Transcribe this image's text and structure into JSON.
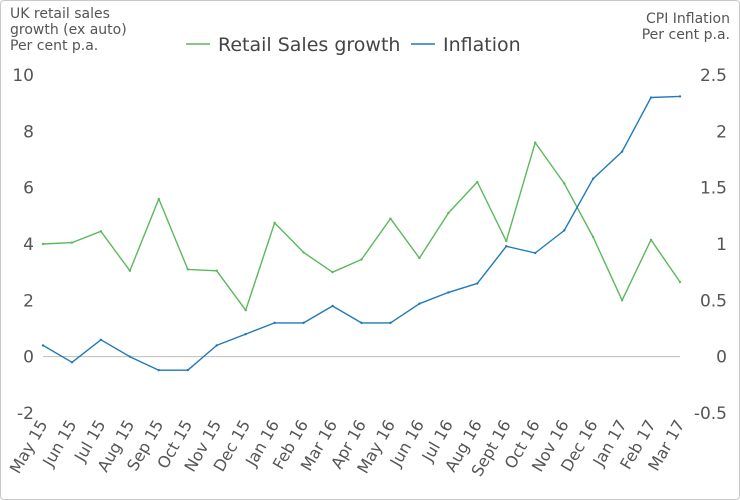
{
  "chart_data": {
    "type": "line",
    "left_axis_title": [
      "UK retail sales",
      "growth (ex auto)",
      "Per cent p.a."
    ],
    "right_axis_title": [
      "CPI Inflation",
      "Per cent p.a."
    ],
    "categories": [
      "May 15",
      "Jun 15",
      "Jul 15",
      "Aug 15",
      "Sep 15",
      "Oct 15",
      "Nov 15",
      "Dec 15",
      "Jan 16",
      "Feb 16",
      "Mar 16",
      "Apr 16",
      "May 16",
      "Jun 16",
      "Jul 16",
      "Aug 16",
      "Sept 16",
      "Oct 16",
      "Nov 16",
      "Dec 16",
      "Jan 17",
      "Feb 17",
      "Mar 17"
    ],
    "y_left": {
      "range": [
        -2,
        10
      ],
      "ticks": [
        "-2",
        "0",
        "2",
        "4",
        "6",
        "8",
        "10"
      ]
    },
    "y_right": {
      "range": [
        -0.5,
        2.5
      ],
      "ticks": [
        "-0.5",
        "0",
        "0.5",
        "1",
        "1.5",
        "2",
        "2.5"
      ]
    },
    "series": [
      {
        "name": "Retail Sales growth",
        "axis": "left",
        "color": "#5cb85c",
        "values": [
          4.0,
          4.05,
          4.45,
          3.05,
          5.6,
          3.1,
          3.05,
          1.65,
          4.75,
          3.7,
          3.0,
          3.45,
          4.9,
          3.5,
          5.1,
          6.2,
          4.1,
          7.6,
          6.15,
          4.25,
          2.0,
          4.15,
          2.65
        ]
      },
      {
        "name": "Inflation",
        "axis": "right",
        "color": "#1f7ab8",
        "values": [
          0.1,
          -0.05,
          0.15,
          0.0,
          -0.12,
          -0.12,
          0.1,
          0.2,
          0.3,
          0.3,
          0.45,
          0.3,
          0.3,
          0.47,
          0.57,
          0.65,
          0.98,
          0.92,
          1.12,
          1.58,
          1.82,
          2.3,
          2.31
        ]
      }
    ],
    "legend_position": "top-center",
    "zero_line": true,
    "grid": false
  }
}
